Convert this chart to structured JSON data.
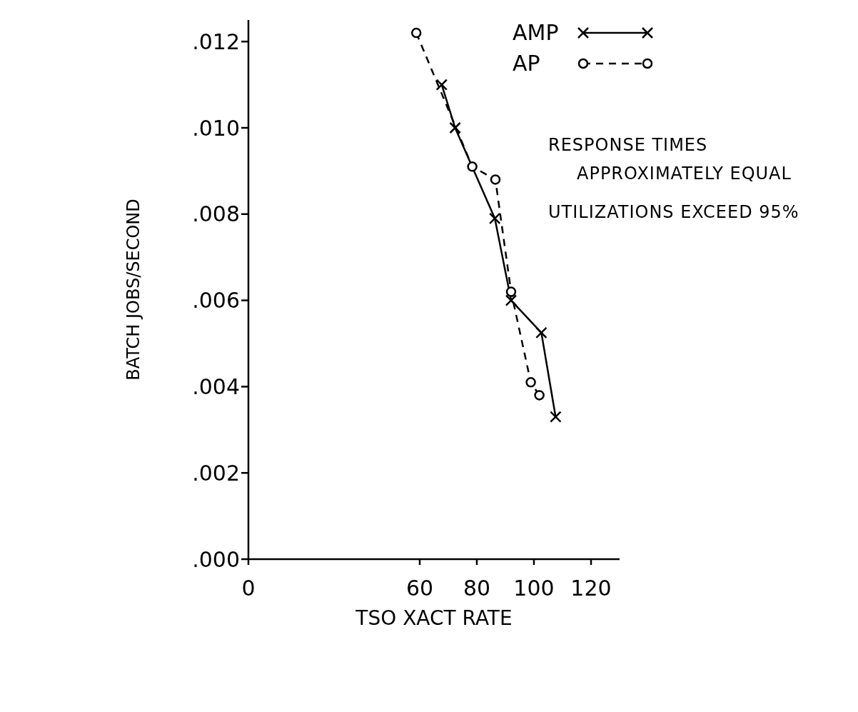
{
  "chart_data": {
    "type": "line",
    "xlabel": "TSO XACT RATE",
    "ylabel": "BATCH JOBS/SECOND",
    "series": [
      {
        "name": "AMP",
        "color": "#000000",
        "marker": "cross",
        "line_style": "solid",
        "x": [
          67.7,
          72.4,
          86.3,
          92.0,
          102.6,
          107.6
        ],
        "values": [
          0.011,
          0.01,
          0.0079,
          0.006,
          0.00525,
          0.0033
        ]
      },
      {
        "name": "AP",
        "color": "#000000",
        "marker": "circle",
        "line_style": "dashed",
        "x": [
          58.8,
          78.4,
          86.5,
          92.0,
          98.9,
          101.9
        ],
        "values": [
          0.0122,
          0.0091,
          0.0088,
          0.0062,
          0.0041,
          0.0038
        ]
      }
    ],
    "xlim": [
      0,
      130
    ],
    "xticks": [
      0,
      60,
      80,
      100,
      120
    ],
    "ylim": [
      0,
      0.0125
    ],
    "yticks": [
      {
        "value": 0,
        "label": ".000"
      },
      {
        "value": 0.002,
        "label": ".002"
      },
      {
        "value": 0.004,
        "label": ".004"
      },
      {
        "value": 0.006,
        "label": ".006"
      },
      {
        "value": 0.008,
        "label": ".008"
      },
      {
        "value": 0.01,
        "label": ".010"
      },
      {
        "value": 0.012,
        "label": ".012"
      }
    ],
    "grid": false,
    "legend": "top right",
    "annotations": [
      "RESPONSE TIMES APPROXIMATELY EQUAL",
      "UTILIZATIONS EXCEED 95%"
    ]
  }
}
